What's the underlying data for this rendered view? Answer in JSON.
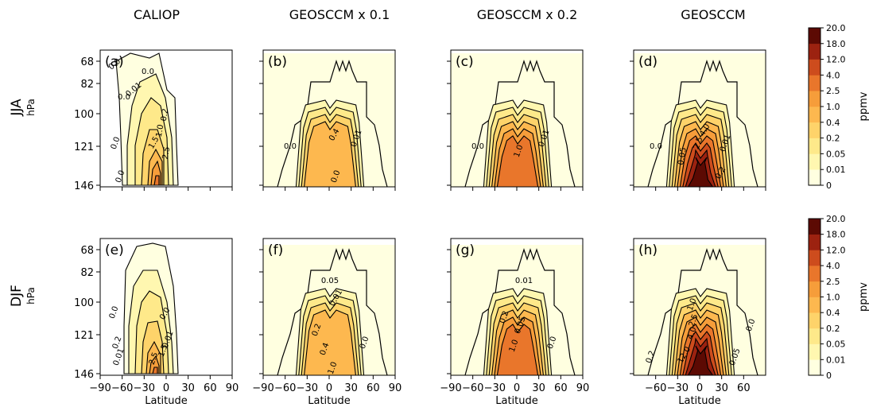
{
  "figure": {
    "row_labels": [
      "JJA",
      "DJF"
    ],
    "row_unit": "hPa",
    "xlabel": "Latitude",
    "y_ticks": [
      68,
      82,
      100,
      121,
      146
    ],
    "x_ticks_full": [
      "−90",
      "−60",
      "−30",
      "0",
      "30",
      "60",
      "90"
    ],
    "x_ticks_reduced": [
      "−60",
      "−30",
      "0",
      "30",
      "60"
    ]
  },
  "colorbar": {
    "label": "ppmv",
    "levels": [
      "0",
      "0.01",
      "0.05",
      "0.2",
      "0.4",
      "1.0",
      "2.5",
      "4.0",
      "12.0",
      "18.0",
      "20.0"
    ],
    "colors": [
      "#ffffe0",
      "#fff7b0",
      "#fee98a",
      "#fed36a",
      "#fdb84f",
      "#f69d3a",
      "#e9762b",
      "#cd4c1d",
      "#9c2210",
      "#5c0a03"
    ]
  },
  "chart_data": [
    {
      "type": "heatmap",
      "panel": "(a)",
      "title": "CALIOP",
      "season": "JJA",
      "xlabel": "",
      "ylabel": "hPa",
      "xlim": [
        -90,
        90
      ],
      "yticks": [
        68,
        82,
        100,
        121,
        146
      ],
      "contour_labels": [
        "0.0",
        "0.0",
        "0.01",
        "0.0",
        "0.2",
        "0.0",
        "0.0",
        "1.0",
        "1.5",
        "2.5"
      ],
      "peak_level": "2.5"
    },
    {
      "type": "heatmap",
      "panel": "(b)",
      "title": "GEOSCCM x 0.1",
      "season": "JJA",
      "xlabel": "",
      "ylabel": "",
      "xlim": [
        -90,
        90
      ],
      "yticks": [
        68,
        82,
        100,
        121,
        146
      ],
      "contour_labels": [
        "0.0",
        "0.4",
        "0.01",
        "0.0"
      ],
      "peak_level": "1.0"
    },
    {
      "type": "heatmap",
      "panel": "(c)",
      "title": "GEOSCCM x 0.2",
      "season": "JJA",
      "xlabel": "",
      "ylabel": "",
      "xlim": [
        -90,
        90
      ],
      "yticks": [
        68,
        82,
        100,
        121,
        146
      ],
      "contour_labels": [
        "0.0",
        "1.0",
        "0.01"
      ],
      "peak_level": "2.5"
    },
    {
      "type": "heatmap",
      "panel": "(d)",
      "title": "GEOSCCM",
      "season": "JJA",
      "xlabel": "",
      "ylabel": "",
      "xlim": [
        -90,
        90
      ],
      "yticks": [
        68,
        82,
        100,
        121,
        146
      ],
      "contour_labels": [
        "0.0",
        "0.05",
        "2.5",
        "4.0",
        "0.01",
        "0.2"
      ],
      "peak_level": "12.0"
    },
    {
      "type": "heatmap",
      "panel": "(e)",
      "title": "",
      "season": "DJF",
      "xlabel": "Latitude",
      "ylabel": "hPa",
      "xlim": [
        -90,
        90
      ],
      "yticks": [
        68,
        82,
        100,
        121,
        146
      ],
      "contour_labels": [
        "0.0",
        "0.0",
        "0.01",
        "0.2",
        "0.01",
        "2.5",
        "1.5"
      ],
      "peak_level": "2.5"
    },
    {
      "type": "heatmap",
      "panel": "(f)",
      "title": "",
      "season": "DJF",
      "xlabel": "Latitude",
      "ylabel": "",
      "xlim": [
        -90,
        90
      ],
      "yticks": [
        68,
        82,
        100,
        121,
        146
      ],
      "contour_labels": [
        "0.05",
        "0.01",
        "0.2",
        "0.4",
        "1.0",
        "0.0"
      ],
      "peak_level": "1.0"
    },
    {
      "type": "heatmap",
      "panel": "(g)",
      "title": "",
      "season": "DJF",
      "xlabel": "Latitude",
      "ylabel": "",
      "xlim": [
        -90,
        90
      ],
      "yticks": [
        68,
        82,
        100,
        121,
        146
      ],
      "contour_labels": [
        "0.01",
        "0.2",
        "0.05",
        "1.0",
        "0.0"
      ],
      "peak_level": "2.5"
    },
    {
      "type": "heatmap",
      "panel": "(h)",
      "title": "",
      "season": "DJF",
      "xlabel": "Latitude",
      "ylabel": "",
      "xlim": [
        -90,
        90
      ],
      "yticks": [
        68,
        82,
        100,
        121,
        146
      ],
      "contour_labels": [
        "1.0",
        "2.5",
        "4.0",
        "12.0",
        "0.2",
        "0.05",
        "0.0"
      ],
      "peak_level": "18.0"
    }
  ]
}
